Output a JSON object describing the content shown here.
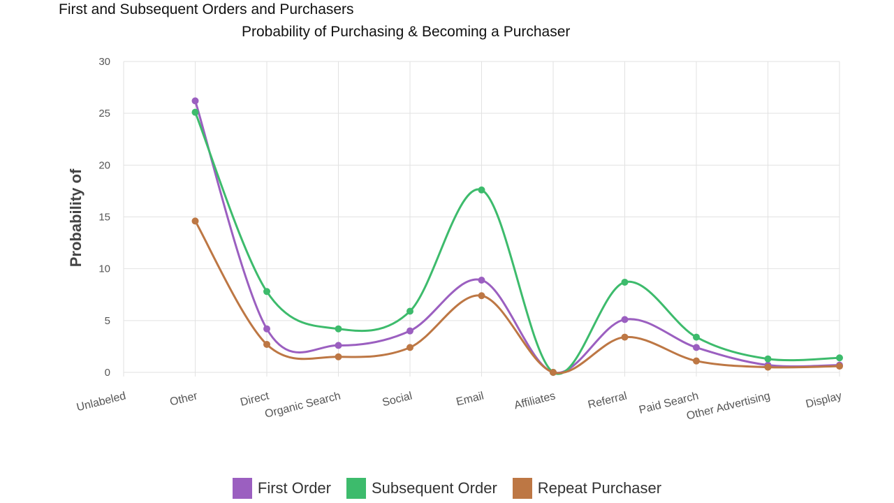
{
  "header": {
    "title": "First and Subsequent Orders and Purchasers"
  },
  "chart_data": {
    "type": "line",
    "title": "Probability of Purchasing & Becoming a Purchaser",
    "ylabel": "Probability of",
    "xlabel": "",
    "ylim": [
      0,
      30
    ],
    "yticks": [
      0,
      5,
      10,
      15,
      20,
      25,
      30
    ],
    "grid": true,
    "legend_position": "bottom",
    "categories": [
      "Unlabeled",
      "Other",
      "Direct",
      "Organic Search",
      "Social",
      "Email",
      "Affiliates",
      "Referral",
      "Paid Search",
      "Other Advertising",
      "Display"
    ],
    "series": [
      {
        "name": "First Order",
        "color": "#9b5fc0",
        "values": [
          null,
          26.2,
          4.2,
          2.6,
          4.0,
          8.9,
          0.0,
          5.1,
          2.4,
          0.7,
          0.7
        ]
      },
      {
        "name": "Subsequent Order",
        "color": "#3dbb6c",
        "values": [
          null,
          25.1,
          7.8,
          4.2,
          5.9,
          17.6,
          0.0,
          8.7,
          3.4,
          1.3,
          1.4
        ]
      },
      {
        "name": "Repeat Purchaser",
        "color": "#bd7744",
        "values": [
          null,
          14.6,
          2.7,
          1.5,
          2.4,
          7.4,
          0.0,
          3.4,
          1.1,
          0.5,
          0.6
        ]
      }
    ]
  }
}
